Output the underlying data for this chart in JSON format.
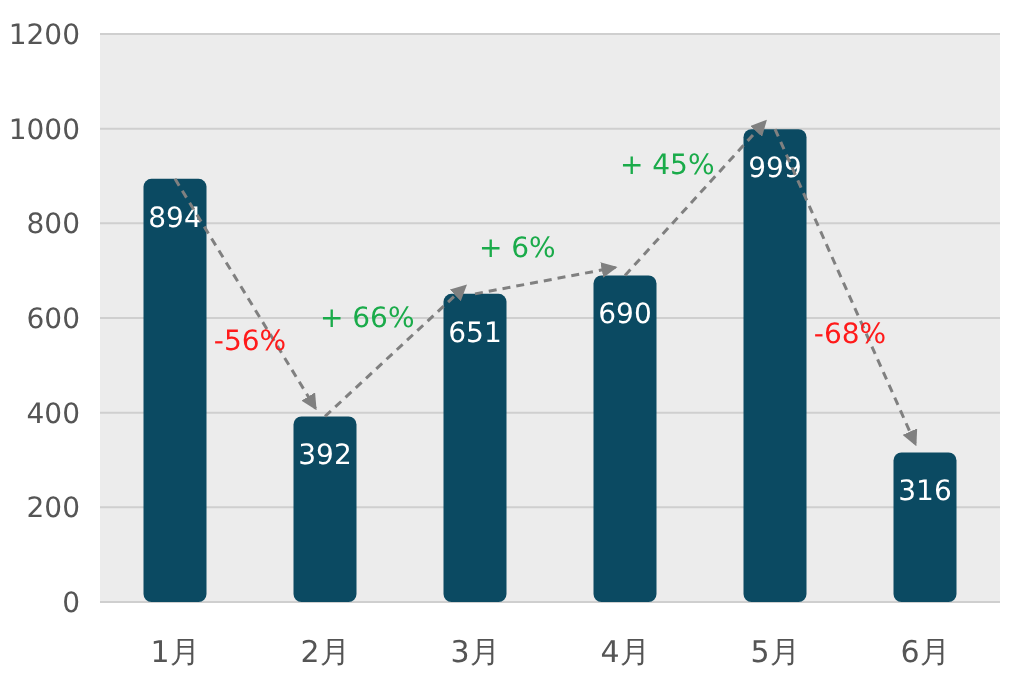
{
  "chart_data": {
    "type": "bar",
    "categories": [
      "1月",
      "2月",
      "3月",
      "4月",
      "5月",
      "6月"
    ],
    "values": [
      894,
      392,
      651,
      690,
      999,
      316
    ],
    "color": "#0b4a62",
    "ylim": [
      0,
      1200
    ],
    "yticks": [
      0,
      200,
      400,
      600,
      800,
      1000,
      1200
    ],
    "grid": "y",
    "data_labels": true,
    "annotations": [
      "-56%",
      {
        "text": "+ 66%",
        "x": "3月",
        "y": 651
      },
      {
        "text": "+ 6%",
        "x": "4月",
        "y": 690
      },
      {
        "text": "+ 45%",
        "x": "5月",
        "y": 999
      },
      "-68%"
    ]
  }
}
